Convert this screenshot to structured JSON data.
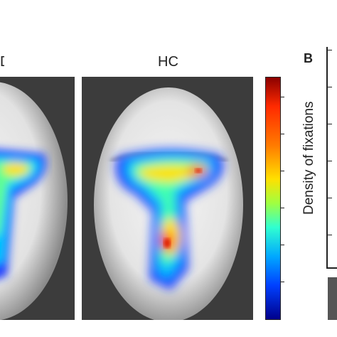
{
  "panels": {
    "right_title": "HC",
    "left_title_fragment": "D"
  },
  "figure_label": "B",
  "colorbar": {
    "colormap": "jet",
    "colors": [
      "#8b0000",
      "#ff2a00",
      "#ff7a00",
      "#ffe000",
      "#a0ff40",
      "#30ffd0",
      "#00a8ff",
      "#0040ff",
      "#00008b"
    ]
  },
  "axis": {
    "ylabel": "Density of fixations"
  }
}
